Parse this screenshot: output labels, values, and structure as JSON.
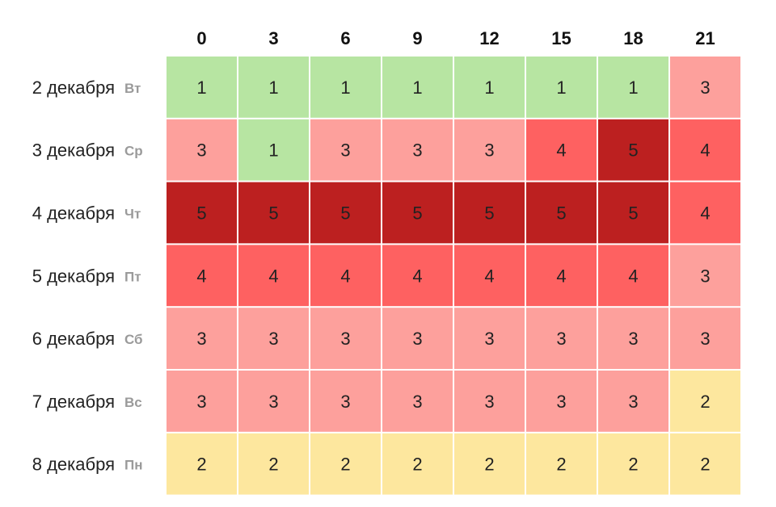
{
  "chart_data": {
    "type": "heatmap",
    "columns": [
      "0",
      "3",
      "6",
      "9",
      "12",
      "15",
      "18",
      "21"
    ],
    "rows": [
      {
        "date": "2 декабря",
        "weekday": "Вт",
        "values": [
          1,
          1,
          1,
          1,
          1,
          1,
          1,
          3
        ]
      },
      {
        "date": "3 декабря",
        "weekday": "Ср",
        "values": [
          3,
          1,
          3,
          3,
          3,
          4,
          5,
          4
        ]
      },
      {
        "date": "4 декабря",
        "weekday": "Чт",
        "values": [
          5,
          5,
          5,
          5,
          5,
          5,
          5,
          4
        ]
      },
      {
        "date": "5 декабря",
        "weekday": "Пт",
        "values": [
          4,
          4,
          4,
          4,
          4,
          4,
          4,
          3
        ]
      },
      {
        "date": "6 декабря",
        "weekday": "Сб",
        "values": [
          3,
          3,
          3,
          3,
          3,
          3,
          3,
          3
        ]
      },
      {
        "date": "7 декабря",
        "weekday": "Вс",
        "values": [
          3,
          3,
          3,
          3,
          3,
          3,
          3,
          2
        ]
      },
      {
        "date": "8 декабря",
        "weekday": "Пн",
        "values": [
          2,
          2,
          2,
          2,
          2,
          2,
          2,
          2
        ]
      }
    ],
    "color_scale": {
      "1": "#b7e5a2",
      "2": "#fde79e",
      "3": "#fda09c",
      "4": "#fe6161",
      "5": "#bc2020"
    }
  }
}
